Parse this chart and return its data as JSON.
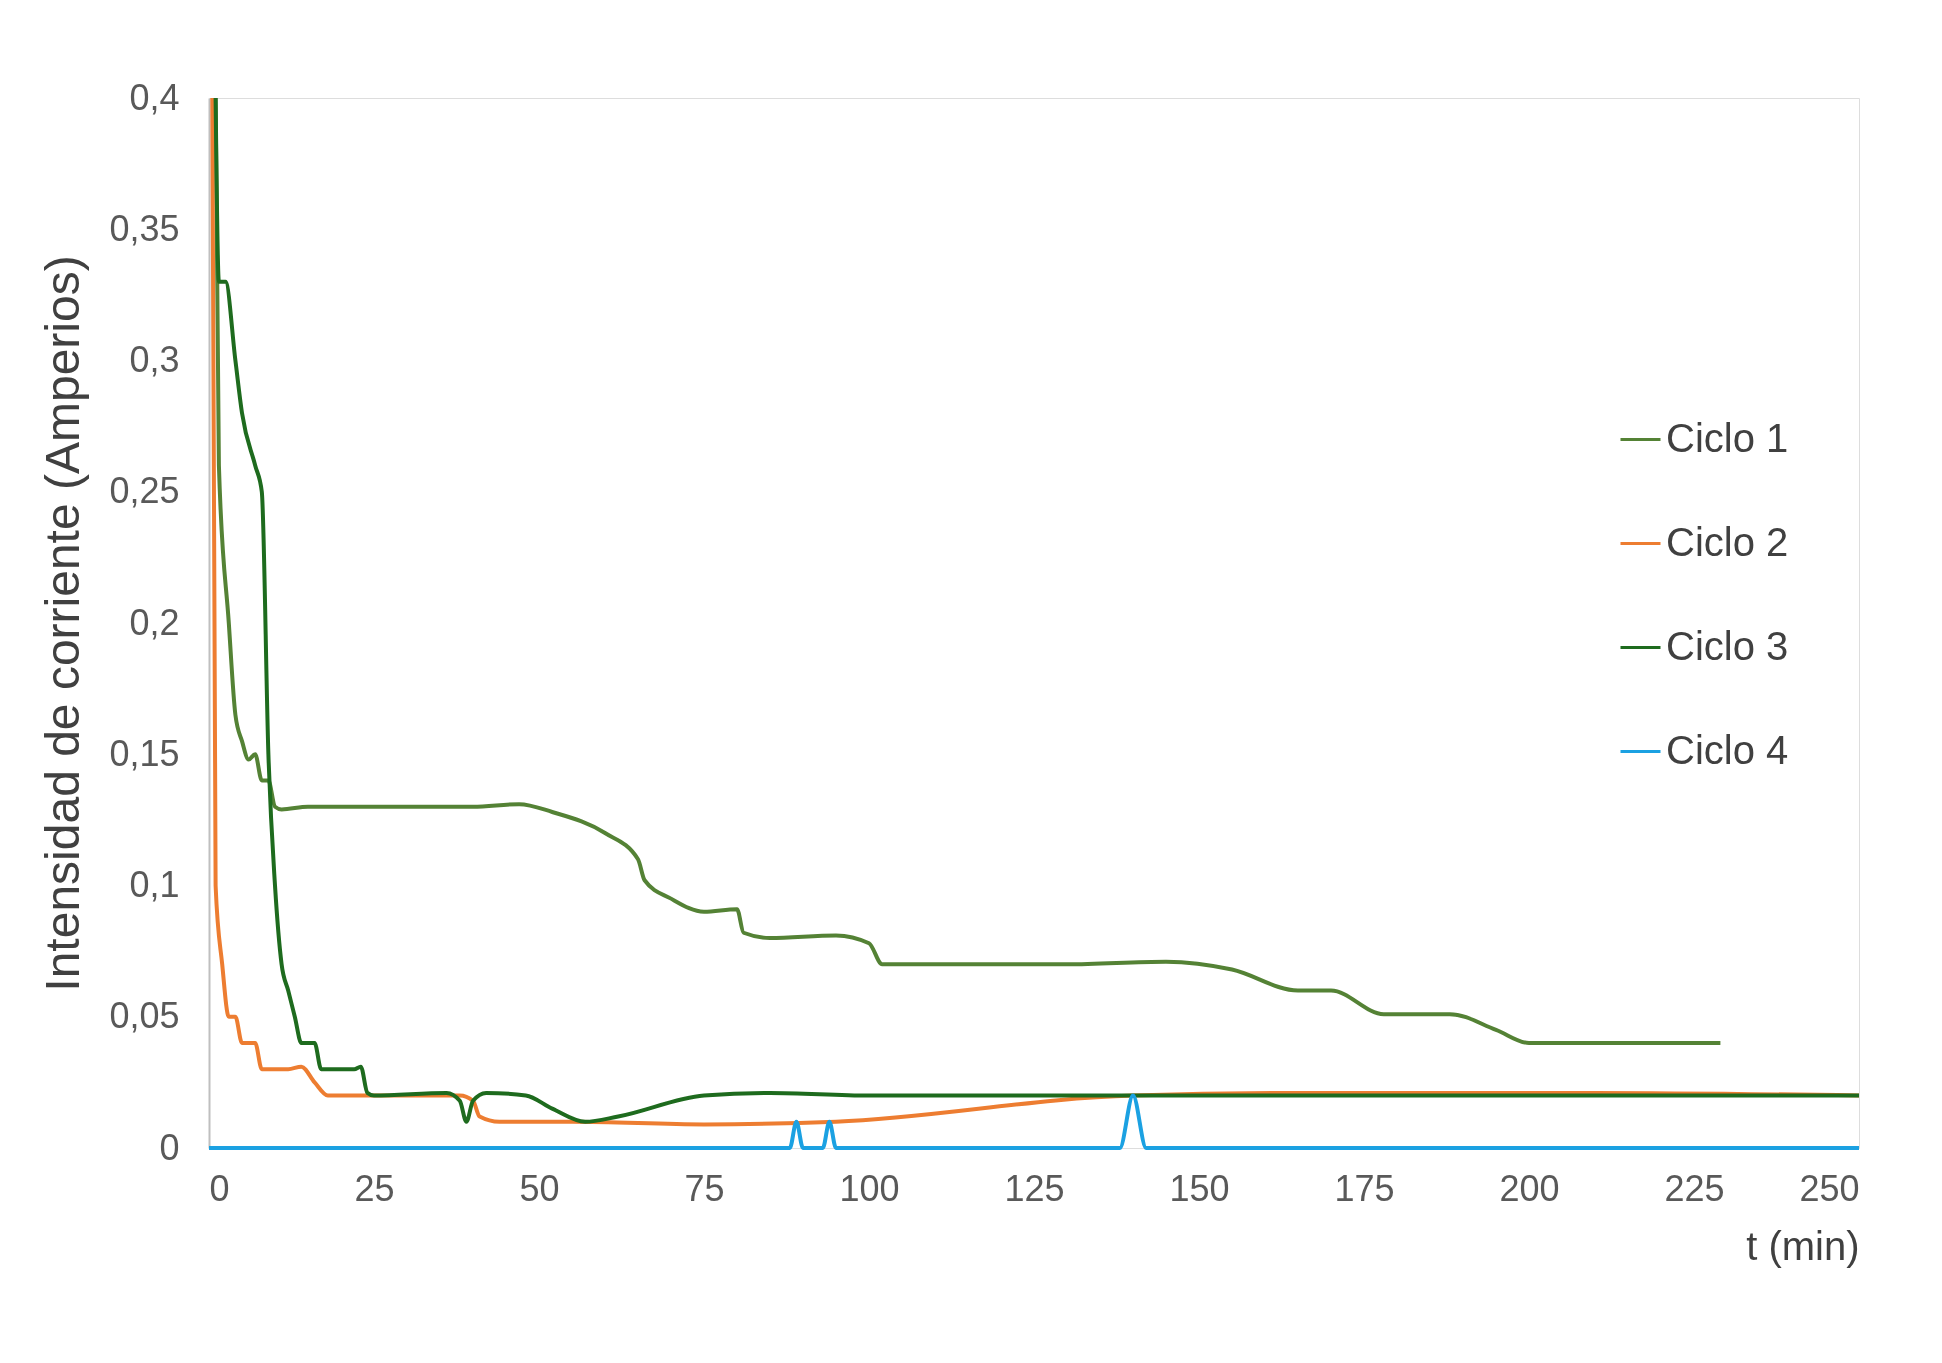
{
  "chart_data": {
    "type": "line",
    "xlabel": "t (min)",
    "ylabel": "Intensidad de corriente (Amperios)",
    "xlim": [
      0,
      250
    ],
    "xticks": [
      0,
      25,
      50,
      75,
      100,
      125,
      150,
      175,
      200,
      225,
      250
    ],
    "ylim": [
      0,
      0.4
    ],
    "yticks": [
      {
        "value": 0,
        "label": "0"
      },
      {
        "value": 0.05,
        "label": "0,05"
      },
      {
        "value": 0.1,
        "label": "0,1"
      },
      {
        "value": 0.15,
        "label": "0,15"
      },
      {
        "value": 0.2,
        "label": "0,2"
      },
      {
        "value": 0.25,
        "label": "0,25"
      },
      {
        "value": 0.3,
        "label": "0,3"
      },
      {
        "value": 0.35,
        "label": "0,35"
      },
      {
        "value": 0.4,
        "label": "0,4"
      }
    ],
    "grid": false,
    "legend": "right",
    "marker": "none",
    "line_style": "solid",
    "series": [
      {
        "name": "Ciclo 1",
        "color": "#548235",
        "x": [
          1,
          1.5,
          3,
          4,
          5,
          6,
          7,
          8,
          9,
          10,
          11,
          15,
          40,
          47,
          52,
          60,
          65,
          66,
          70,
          75,
          80,
          81,
          85,
          95,
          100,
          102,
          110,
          130,
          145,
          155,
          165,
          170,
          178,
          188,
          195,
          200,
          210,
          229
        ],
        "values": [
          0.4,
          0.26,
          0.2,
          0.165,
          0.155,
          0.148,
          0.15,
          0.14,
          0.14,
          0.13,
          0.129,
          0.13,
          0.13,
          0.131,
          0.128,
          0.12,
          0.11,
          0.102,
          0.095,
          0.09,
          0.091,
          0.082,
          0.08,
          0.081,
          0.078,
          0.07,
          0.07,
          0.07,
          0.071,
          0.068,
          0.06,
          0.06,
          0.051,
          0.051,
          0.045,
          0.04,
          0.04,
          0.04
        ]
      },
      {
        "name": "Ciclo 2",
        "color": "#ed7d31",
        "x": [
          0.5,
          1,
          2,
          3,
          4,
          5,
          6,
          7,
          8,
          12,
          14,
          16,
          18,
          25,
          38,
          40,
          41,
          44,
          55,
          75,
          95,
          140,
          170,
          210,
          250
        ],
        "values": [
          0.4,
          0.1,
          0.07,
          0.05,
          0.05,
          0.04,
          0.04,
          0.04,
          0.03,
          0.03,
          0.031,
          0.025,
          0.02,
          0.02,
          0.02,
          0.018,
          0.012,
          0.01,
          0.01,
          0.009,
          0.01,
          0.02,
          0.021,
          0.021,
          0.02
        ]
      },
      {
        "name": "Ciclo 3",
        "color": "#1e6b1e",
        "x": [
          1,
          1.5,
          2.5,
          4,
          5,
          7,
          8,
          9,
          10,
          11,
          12,
          13,
          14,
          15,
          16,
          17,
          22,
          23,
          24,
          25,
          36,
          38,
          39,
          40,
          42,
          48,
          52,
          57,
          62,
          75,
          85,
          100,
          250
        ],
        "values": [
          0.4,
          0.33,
          0.33,
          0.3,
          0.28,
          0.26,
          0.25,
          0.15,
          0.1,
          0.07,
          0.06,
          0.05,
          0.04,
          0.04,
          0.04,
          0.03,
          0.03,
          0.031,
          0.021,
          0.02,
          0.021,
          0.018,
          0.01,
          0.018,
          0.021,
          0.02,
          0.015,
          0.01,
          0.012,
          0.02,
          0.021,
          0.02,
          0.02
        ]
      },
      {
        "name": "Ciclo 4",
        "color": "#1ba1e2",
        "x": [
          0,
          88,
          89,
          90,
          93,
          94,
          95,
          138,
          140,
          142,
          250
        ],
        "values": [
          0,
          0,
          0.01,
          0,
          0,
          0.01,
          0,
          0,
          0.02,
          0,
          0
        ]
      }
    ]
  }
}
